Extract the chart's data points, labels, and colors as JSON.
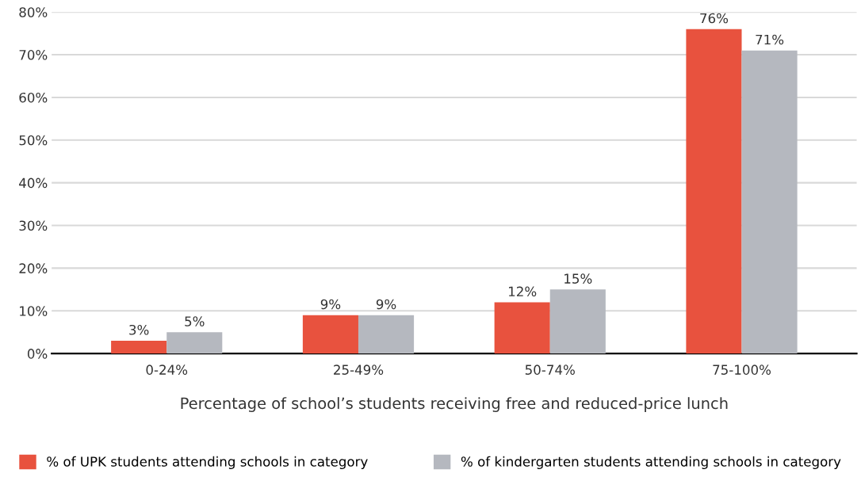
{
  "chart_data": {
    "type": "bar",
    "xlabel": "Percentage of school’s students receiving free and reduced-price lunch",
    "categories": [
      "0-24%",
      "25-49%",
      "50-74%",
      "75-100%"
    ],
    "series": [
      {
        "name": "% of UPK students attending schools in category",
        "color": "#e8523e",
        "values": [
          3,
          9,
          12,
          76
        ],
        "value_labels": [
          "3%",
          "9%",
          "12%",
          "76%"
        ]
      },
      {
        "name": "% of kindergarten students attending schools in category",
        "color": "#b5b8bf",
        "values": [
          5,
          9,
          15,
          71
        ],
        "value_labels": [
          "5%",
          "9%",
          "15%",
          "71%"
        ]
      }
    ],
    "ylim": [
      0,
      80
    ],
    "yticks": [
      {
        "value": 0,
        "label": "0%"
      },
      {
        "value": 10,
        "label": "10%"
      },
      {
        "value": 20,
        "label": "20%"
      },
      {
        "value": 30,
        "label": "30%"
      },
      {
        "value": 40,
        "label": "40%"
      },
      {
        "value": 50,
        "label": "50%"
      },
      {
        "value": 60,
        "label": "60%"
      },
      {
        "value": 70,
        "label": "70%"
      },
      {
        "value": 80,
        "label": "80%"
      }
    ],
    "grid": "y",
    "legend": "bottom"
  }
}
